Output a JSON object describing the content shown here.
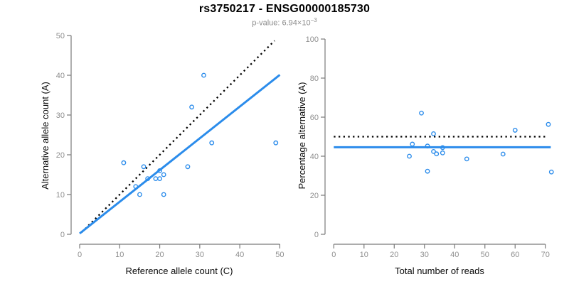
{
  "header": {
    "title": "rs3750217 - ENSG00000185730",
    "subtitle_prefix": "p-value: ",
    "subtitle_value": "6.94×10",
    "subtitle_exponent": "−3"
  },
  "colors": {
    "accent_blue": "#2b8ceb",
    "identity_line": "#000000",
    "axis_line": "#7a7a7a",
    "tick_label": "#8f8f8f",
    "axis_title": "#0a0a0a",
    "title": "#000000",
    "subtitle": "#8c8c8c",
    "background": "#ffffff"
  },
  "chart_data": [
    {
      "type": "scatter",
      "title": "",
      "xlabel": "Reference allele count (C)",
      "ylabel": "Alternative allele count (A)",
      "xlim": [
        0,
        50.5
      ],
      "ylim": [
        0,
        50
      ],
      "xticks": [
        0,
        10,
        20,
        30,
        40,
        50
      ],
      "yticks": [
        0,
        10,
        20,
        30,
        40,
        50
      ],
      "grid": false,
      "legend": null,
      "points": [
        [
          11,
          18
        ],
        [
          14,
          12
        ],
        [
          15,
          10
        ],
        [
          16,
          17
        ],
        [
          17,
          14
        ],
        [
          19,
          14
        ],
        [
          20,
          14
        ],
        [
          20,
          16
        ],
        [
          21,
          15
        ],
        [
          21,
          10
        ],
        [
          27,
          17
        ],
        [
          28,
          32
        ],
        [
          31,
          40
        ],
        [
          33,
          23
        ],
        [
          49,
          23
        ]
      ],
      "lines": [
        {
          "name": "identity-diagonal",
          "style": "dotted",
          "color": "#000000",
          "x1": 0.5,
          "y1": 0.5,
          "x2": 48.7,
          "y2": 48.7
        },
        {
          "name": "regression-fit",
          "style": "solid",
          "color": "#2b8ceb",
          "x1": 0,
          "y1": 0.2,
          "x2": 50,
          "y2": 40.1
        }
      ]
    },
    {
      "type": "scatter",
      "title": "",
      "xlabel": "Total number of reads",
      "ylabel": "Percentage alternative (A)",
      "xlim": [
        0,
        73
      ],
      "ylim": [
        0,
        100
      ],
      "xticks": [
        0,
        10,
        20,
        30,
        40,
        50,
        60,
        70
      ],
      "yticks": [
        0,
        20,
        40,
        60,
        80,
        100
      ],
      "grid": false,
      "legend": null,
      "points": [
        [
          29,
          62.1
        ],
        [
          26,
          46.2
        ],
        [
          25,
          40.0
        ],
        [
          33,
          51.5
        ],
        [
          31,
          45.2
        ],
        [
          33,
          42.4
        ],
        [
          34,
          41.2
        ],
        [
          36,
          44.4
        ],
        [
          36,
          41.7
        ],
        [
          31,
          32.3
        ],
        [
          44,
          38.6
        ],
        [
          60,
          53.3
        ],
        [
          71,
          56.3
        ],
        [
          56,
          41.1
        ],
        [
          72,
          31.9
        ]
      ],
      "lines": [
        {
          "name": "null-expectation-50pct",
          "style": "dotted",
          "color": "#000000",
          "x1": 0,
          "y1": 50,
          "x2": 70.3,
          "y2": 50
        },
        {
          "name": "mean-percentage",
          "style": "solid",
          "color": "#2b8ceb",
          "x1": 0,
          "y1": 44.6,
          "x2": 71.8,
          "y2": 44.6
        }
      ]
    }
  ]
}
